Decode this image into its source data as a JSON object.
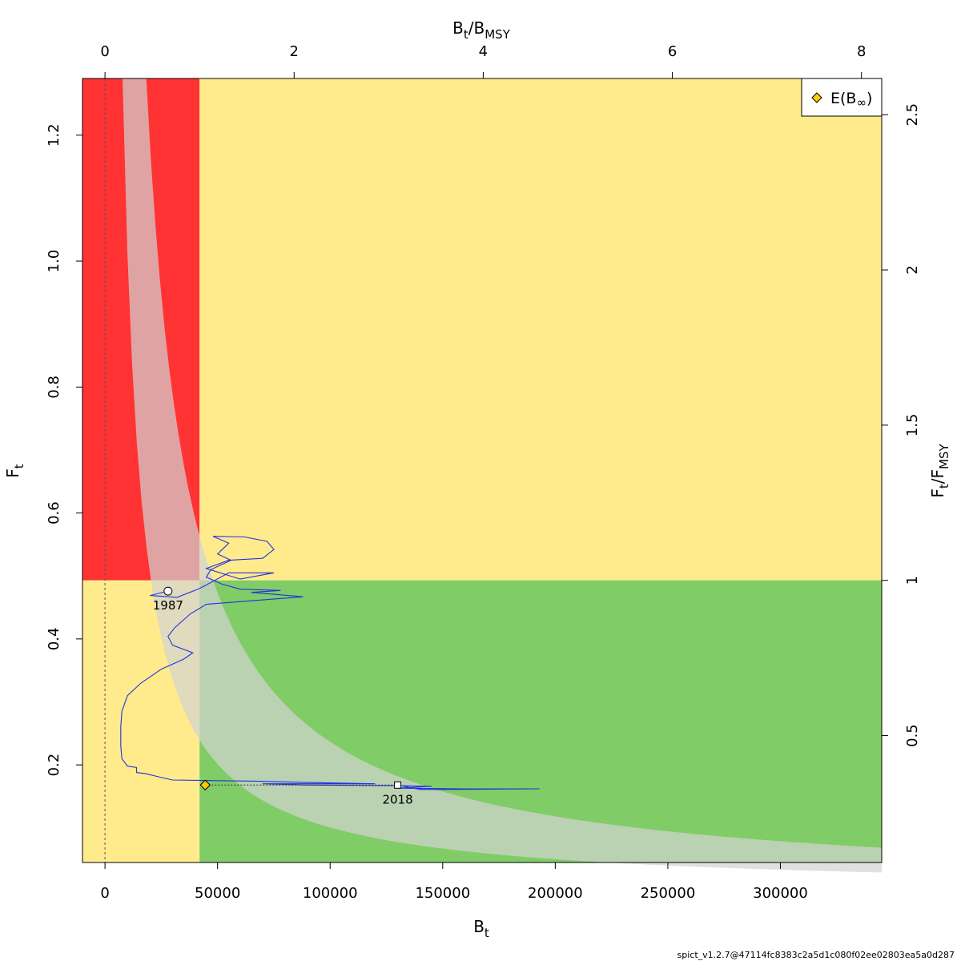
{
  "chart_data": {
    "type": "line",
    "title": "",
    "xlabel": {
      "main": "B",
      "sub": "t"
    },
    "ylabel": {
      "main": "F",
      "sub": "t"
    },
    "top_axis_label": {
      "main": "B",
      "sub": "t",
      "sep": "/",
      "main2": "B",
      "sub2": "MSY"
    },
    "right_axis_label": {
      "main": "F",
      "sub": "t",
      "sep": "/",
      "main2": "F",
      "sub2": "MSY"
    },
    "xlim": [
      -10000,
      345000
    ],
    "ylim": [
      0.045,
      1.29
    ],
    "x_ticks": [
      0,
      50000,
      100000,
      150000,
      200000,
      250000,
      300000
    ],
    "x_tick_labels": [
      "0",
      "50000",
      "100000",
      "150000",
      "200000",
      "250000",
      "300000"
    ],
    "y_ticks": [
      0.2,
      0.4,
      0.6,
      0.8,
      1.0,
      1.2
    ],
    "y_tick_labels": [
      "0.2",
      "0.4",
      "0.6",
      "0.8",
      "1.0",
      "1.2"
    ],
    "top_ticks": [
      0,
      2,
      4,
      6,
      8
    ],
    "top_tick_labels": [
      "0",
      "2",
      "4",
      "6",
      "8"
    ],
    "right_ticks": [
      0.5,
      1,
      1.5,
      2,
      2.5
    ],
    "right_tick_labels": [
      "0.5",
      "1",
      "1.5",
      "2",
      "2.5"
    ],
    "Bmsy": 42000,
    "Fmsy": 0.493,
    "grid": false,
    "regions": {
      "overfished_overfishing": "#ff3333",
      "overfished_or_overfishing": "#ffeb8c",
      "healthy": "#80cc66",
      "msy_confidence_band": "#d3d3d3"
    },
    "msy_band": {
      "msy_lower": 20400,
      "msy_upper": 48000,
      "note_hidden": false
    },
    "series": [
      {
        "name": "",
        "color": "#2233dd",
        "points": [
          [
            28000,
            0.476
          ],
          [
            20000,
            0.469
          ],
          [
            32000,
            0.466
          ],
          [
            42000,
            0.48
          ],
          [
            55000,
            0.505
          ],
          [
            75000,
            0.505
          ],
          [
            60000,
            0.495
          ],
          [
            45000,
            0.512
          ],
          [
            55000,
            0.525
          ],
          [
            70000,
            0.528
          ],
          [
            75000,
            0.542
          ],
          [
            72000,
            0.555
          ],
          [
            62000,
            0.562
          ],
          [
            48000,
            0.563
          ],
          [
            55000,
            0.552
          ],
          [
            50000,
            0.535
          ],
          [
            56000,
            0.525
          ],
          [
            47000,
            0.51
          ],
          [
            45000,
            0.498
          ],
          [
            52000,
            0.487
          ],
          [
            60000,
            0.479
          ],
          [
            78000,
            0.477
          ],
          [
            65000,
            0.474
          ],
          [
            88000,
            0.467
          ],
          [
            70000,
            0.462
          ],
          [
            45000,
            0.455
          ],
          [
            38000,
            0.44
          ],
          [
            31000,
            0.418
          ],
          [
            28000,
            0.404
          ],
          [
            30000,
            0.39
          ],
          [
            39000,
            0.378
          ],
          [
            35000,
            0.368
          ],
          [
            25000,
            0.352
          ],
          [
            16000,
            0.33
          ],
          [
            10000,
            0.31
          ],
          [
            7500,
            0.285
          ],
          [
            7000,
            0.26
          ],
          [
            7000,
            0.23
          ],
          [
            7500,
            0.21
          ],
          [
            10000,
            0.198
          ],
          [
            14000,
            0.196
          ],
          [
            14000,
            0.188
          ],
          [
            18000,
            0.186
          ],
          [
            24000,
            0.181
          ],
          [
            30000,
            0.176
          ],
          [
            50000,
            0.175
          ],
          [
            70000,
            0.174
          ],
          [
            90000,
            0.172
          ],
          [
            120000,
            0.17
          ],
          [
            70000,
            0.17
          ],
          [
            90000,
            0.168
          ],
          [
            130000,
            0.167
          ],
          [
            145000,
            0.166
          ],
          [
            130000,
            0.163
          ],
          [
            160000,
            0.162
          ],
          [
            193000,
            0.162
          ],
          [
            150000,
            0.161
          ],
          [
            140000,
            0.161
          ],
          [
            130000,
            0.168
          ]
        ]
      }
    ],
    "start_point": {
      "x": 28000,
      "y": 0.476,
      "label": "1987"
    },
    "end_point": {
      "x": 130000,
      "y": 0.168,
      "label": "2018"
    },
    "equilibrium_point": {
      "x": 44500,
      "y": 0.168
    },
    "reference_line_x": 0,
    "legend": {
      "position": "top-right",
      "entries": [
        {
          "label": "E(B",
          "sub": "∞",
          "close": ")",
          "marker": "diamond",
          "color": "#ffcc00"
        }
      ]
    },
    "footer": "spict_v1.2.7@47114fc8383c2a5d1c080f02ee02803ea5a0d287"
  }
}
